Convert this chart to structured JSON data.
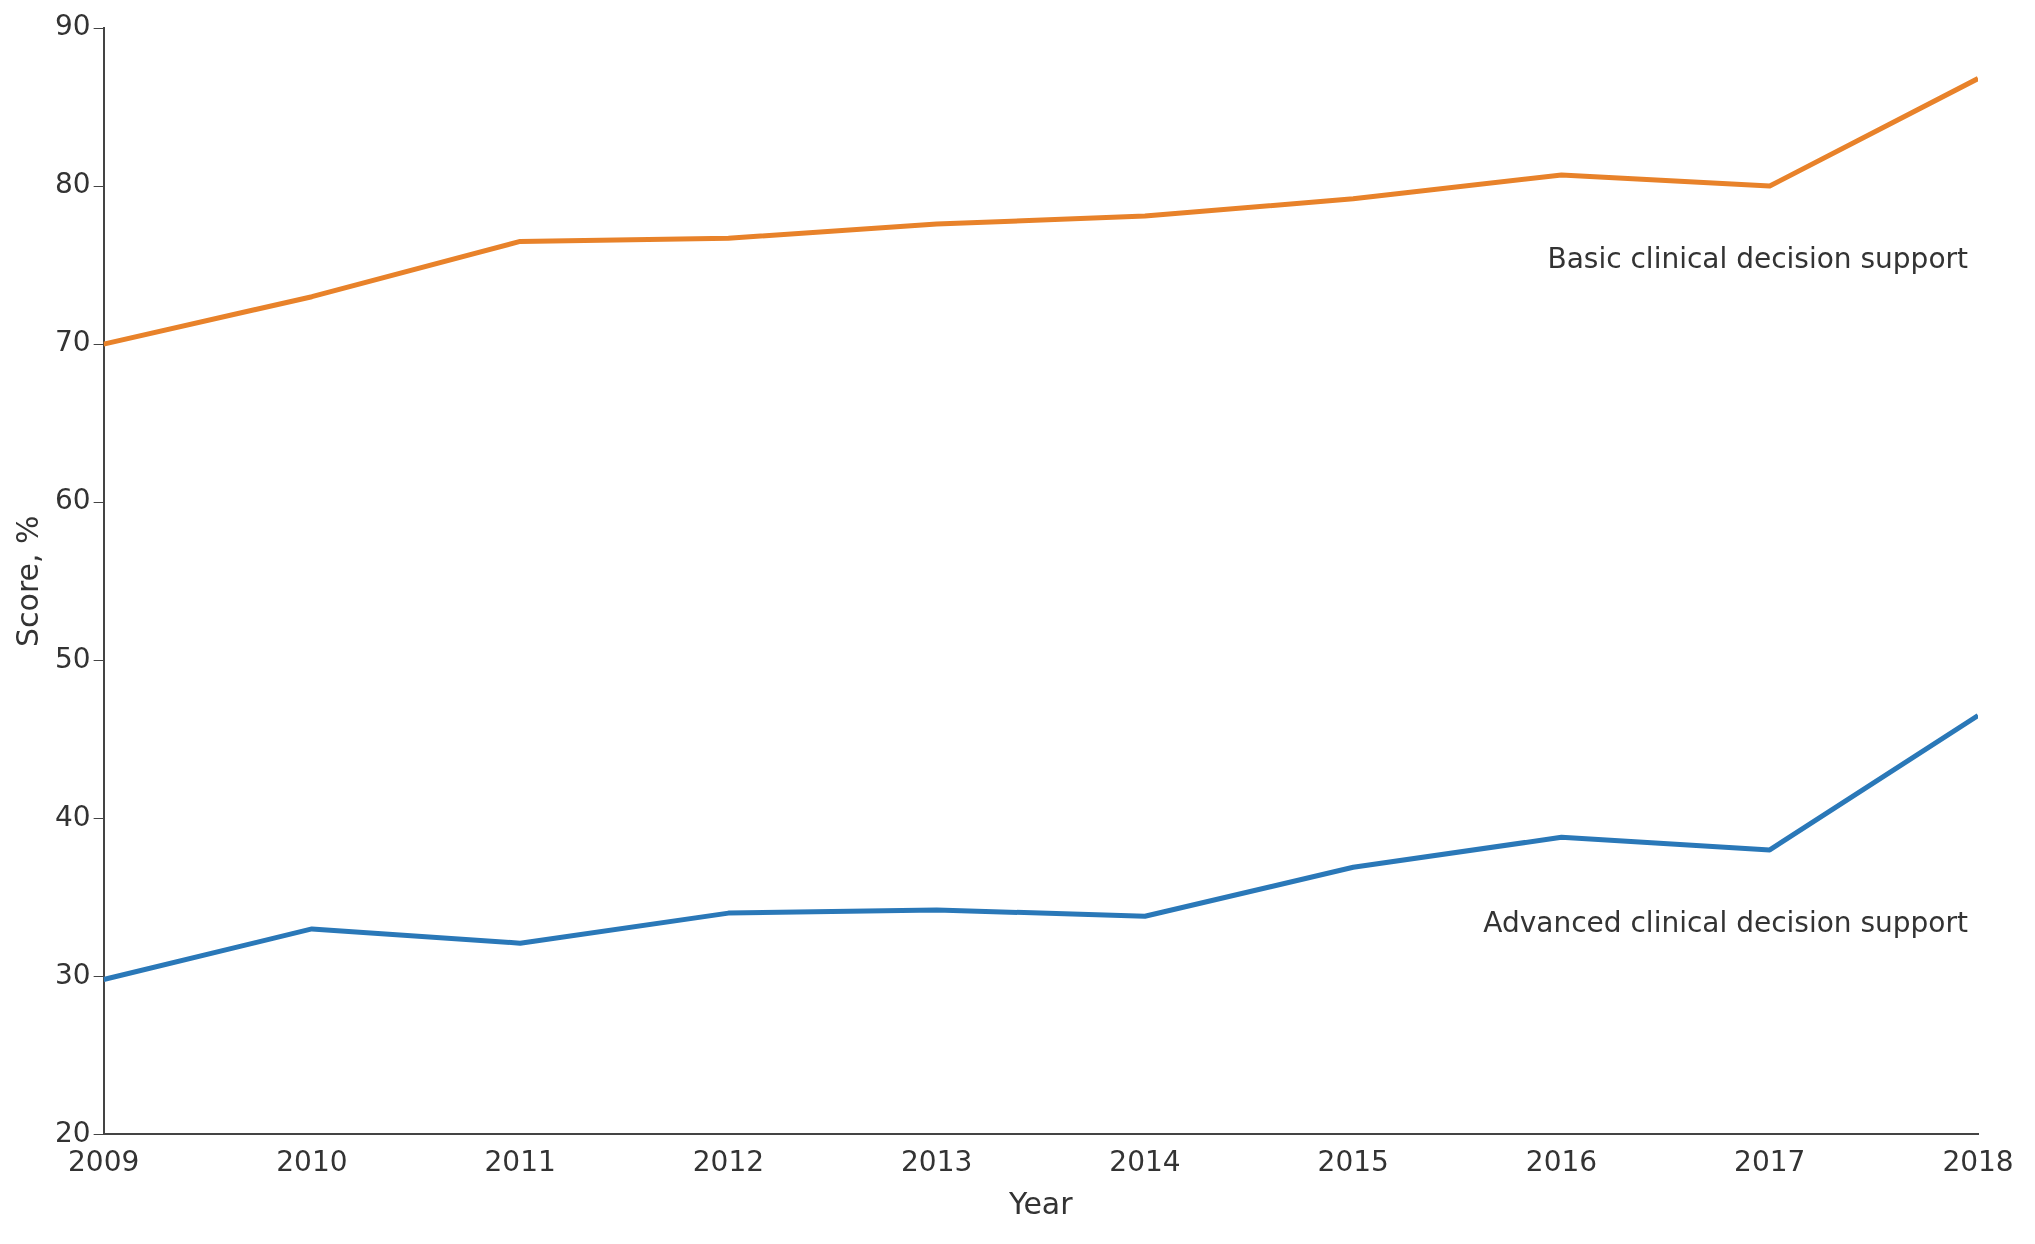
{
  "chart_data": {
    "type": "line",
    "xlabel": "Year",
    "ylabel": "Score, %",
    "x": [
      2009,
      2010,
      2011,
      2012,
      2013,
      2014,
      2015,
      2016,
      2017,
      2018
    ],
    "series": [
      {
        "name": "Basic clinical decision support",
        "color": "#e8822a",
        "values": [
          70,
          73,
          76.5,
          76.7,
          77.6,
          78.1,
          79.2,
          80.7,
          80,
          86.8
        ]
      },
      {
        "name": "Advanced clinical decision support",
        "color": "#2a78b8",
        "values": [
          29.8,
          33,
          32.1,
          34,
          34.2,
          33.8,
          36.9,
          38.8,
          38,
          46.5
        ]
      }
    ],
    "xlim": [
      2009,
      2018
    ],
    "xticks": [
      2009,
      2010,
      2011,
      2012,
      2013,
      2014,
      2015,
      2016,
      2017,
      2018
    ],
    "ylim": [
      20,
      90
    ],
    "yticks": [
      20,
      30,
      40,
      50,
      60,
      70,
      80,
      90
    ],
    "grid": false,
    "legend": false,
    "marker": "none",
    "line_style": "solid"
  }
}
